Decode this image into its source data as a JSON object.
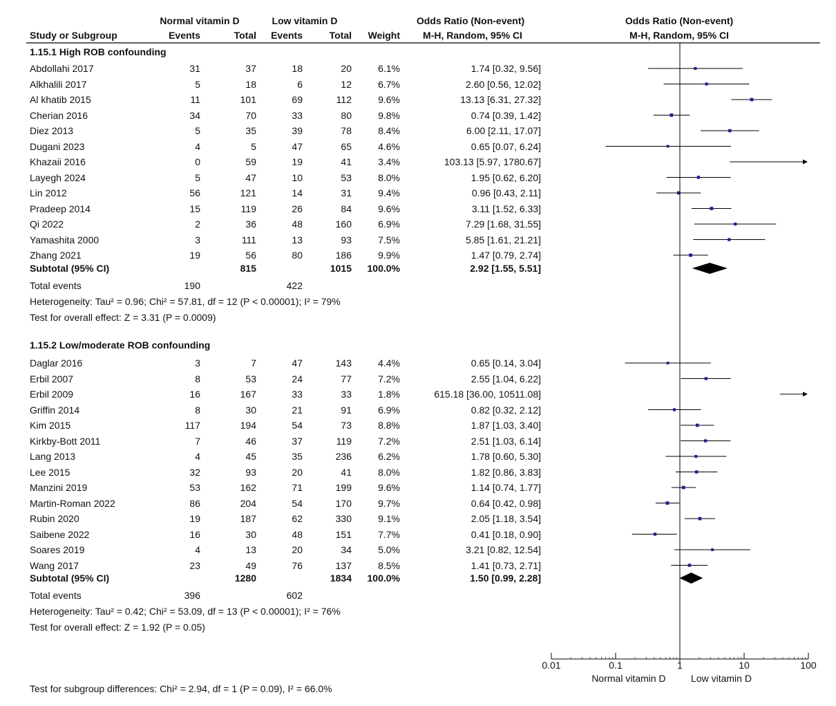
{
  "headers": {
    "group_normal": "Normal vitamin D",
    "group_low": "Low vitamin D",
    "or_label": "Odds Ratio (Non-event)",
    "method": "M-H, Random, 95% CI",
    "study": "Study or Subgroup",
    "events": "Events",
    "total": "Total",
    "weight": "Weight"
  },
  "subgroups": [
    {
      "title": "1.15.1 High ROB confounding",
      "studies": [
        {
          "name": "Abdollahi 2017",
          "e1": "31",
          "t1": "37",
          "e2": "18",
          "t2": "20",
          "weight": "6.1%",
          "ci": "1.74 [0.32, 9.56]",
          "or": 1.74,
          "lo": 0.32,
          "hi": 9.56,
          "w": 6.1
        },
        {
          "name": "Alkhalili 2017",
          "e1": "5",
          "t1": "18",
          "e2": "6",
          "t2": "12",
          "weight": "6.7%",
          "ci": "2.60 [0.56, 12.02]",
          "or": 2.6,
          "lo": 0.56,
          "hi": 12.02,
          "w": 6.7
        },
        {
          "name": "Al khatib 2015",
          "e1": "11",
          "t1": "101",
          "e2": "69",
          "t2": "112",
          "weight": "9.6%",
          "ci": "13.13 [6.31, 27.32]",
          "or": 13.13,
          "lo": 6.31,
          "hi": 27.32,
          "w": 9.6
        },
        {
          "name": "Cherian 2016",
          "e1": "34",
          "t1": "70",
          "e2": "33",
          "t2": "80",
          "weight": "9.8%",
          "ci": "0.74 [0.39, 1.42]",
          "or": 0.74,
          "lo": 0.39,
          "hi": 1.42,
          "w": 9.8
        },
        {
          "name": "Diez 2013",
          "e1": "5",
          "t1": "35",
          "e2": "39",
          "t2": "78",
          "weight": "8.4%",
          "ci": "6.00 [2.11, 17.07]",
          "or": 6.0,
          "lo": 2.11,
          "hi": 17.07,
          "w": 8.4
        },
        {
          "name": "Dugani 2023",
          "e1": "4",
          "t1": "5",
          "e2": "47",
          "t2": "65",
          "weight": "4.6%",
          "ci": "0.65 [0.07, 6.24]",
          "or": 0.65,
          "lo": 0.07,
          "hi": 6.24,
          "w": 4.6
        },
        {
          "name": "Khazaii 2016",
          "e1": "0",
          "t1": "59",
          "e2": "19",
          "t2": "41",
          "weight": "3.4%",
          "ci": "103.13 [5.97, 1780.67]",
          "or": 103.13,
          "lo": 5.97,
          "hi": 1780.67,
          "w": 3.4
        },
        {
          "name": "Layegh 2024",
          "e1": "5",
          "t1": "47",
          "e2": "10",
          "t2": "53",
          "weight": "8.0%",
          "ci": "1.95 [0.62, 6.20]",
          "or": 1.95,
          "lo": 0.62,
          "hi": 6.2,
          "w": 8.0
        },
        {
          "name": "Lin 2012",
          "e1": "56",
          "t1": "121",
          "e2": "14",
          "t2": "31",
          "weight": "9.4%",
          "ci": "0.96 [0.43, 2.11]",
          "or": 0.96,
          "lo": 0.43,
          "hi": 2.11,
          "w": 9.4
        },
        {
          "name": "Pradeep 2014",
          "e1": "15",
          "t1": "119",
          "e2": "26",
          "t2": "84",
          "weight": "9.6%",
          "ci": "3.11 [1.52, 6.33]",
          "or": 3.11,
          "lo": 1.52,
          "hi": 6.33,
          "w": 9.6
        },
        {
          "name": "Qi 2022",
          "e1": "2",
          "t1": "36",
          "e2": "48",
          "t2": "160",
          "weight": "6.9%",
          "ci": "7.29 [1.68, 31.55]",
          "or": 7.29,
          "lo": 1.68,
          "hi": 31.55,
          "w": 6.9
        },
        {
          "name": "Yamashita 2000",
          "e1": "3",
          "t1": "111",
          "e2": "13",
          "t2": "93",
          "weight": "7.5%",
          "ci": "5.85 [1.61, 21.21]",
          "or": 5.85,
          "lo": 1.61,
          "hi": 21.21,
          "w": 7.5
        },
        {
          "name": "Zhang 2021",
          "e1": "19",
          "t1": "56",
          "e2": "80",
          "t2": "186",
          "weight": "9.9%",
          "ci": "1.47 [0.79, 2.74]",
          "or": 1.47,
          "lo": 0.79,
          "hi": 2.74,
          "w": 9.9
        }
      ],
      "subtotal": {
        "label": "Subtotal (95% CI)",
        "t1": "815",
        "t2": "1015",
        "weight": "100.0%",
        "ci": "2.92 [1.55, 5.51]",
        "or": 2.92,
        "lo": 1.55,
        "hi": 5.51
      },
      "total_events": {
        "label": "Total events",
        "e1": "190",
        "e2": "422"
      },
      "heterogeneity": "Heterogeneity: Tau² = 0.96; Chi² = 57.81, df = 12 (P < 0.00001); I² = 79%",
      "overall": "Test for overall effect: Z = 3.31 (P = 0.0009)"
    },
    {
      "title": "1.15.2 Low/moderate ROB confounding",
      "studies": [
        {
          "name": "Daglar 2016",
          "e1": "3",
          "t1": "7",
          "e2": "47",
          "t2": "143",
          "weight": "4.4%",
          "ci": "0.65 [0.14, 3.04]",
          "or": 0.65,
          "lo": 0.14,
          "hi": 3.04,
          "w": 4.4
        },
        {
          "name": "Erbil 2007",
          "e1": "8",
          "t1": "53",
          "e2": "24",
          "t2": "77",
          "weight": "7.2%",
          "ci": "2.55 [1.04, 6.22]",
          "or": 2.55,
          "lo": 1.04,
          "hi": 6.22,
          "w": 7.2
        },
        {
          "name": "Erbil 2009",
          "e1": "16",
          "t1": "167",
          "e2": "33",
          "t2": "33",
          "weight": "1.8%",
          "ci": "615.18 [36.00, 10511.08]",
          "or": 615.18,
          "lo": 36.0,
          "hi": 10511.08,
          "w": 1.8
        },
        {
          "name": "Griffin 2014",
          "e1": "8",
          "t1": "30",
          "e2": "21",
          "t2": "91",
          "weight": "6.9%",
          "ci": "0.82 [0.32, 2.12]",
          "or": 0.82,
          "lo": 0.32,
          "hi": 2.12,
          "w": 6.9
        },
        {
          "name": "Kim 2015",
          "e1": "117",
          "t1": "194",
          "e2": "54",
          "t2": "73",
          "weight": "8.8%",
          "ci": "1.87 [1.03, 3.40]",
          "or": 1.87,
          "lo": 1.03,
          "hi": 3.4,
          "w": 8.8
        },
        {
          "name": "Kirkby-Bott 2011",
          "e1": "7",
          "t1": "46",
          "e2": "37",
          "t2": "119",
          "weight": "7.2%",
          "ci": "2.51 [1.03, 6.14]",
          "or": 2.51,
          "lo": 1.03,
          "hi": 6.14,
          "w": 7.2
        },
        {
          "name": "Lang 2013",
          "e1": "4",
          "t1": "45",
          "e2": "35",
          "t2": "236",
          "weight": "6.2%",
          "ci": "1.78 [0.60, 5.30]",
          "or": 1.78,
          "lo": 0.6,
          "hi": 5.3,
          "w": 6.2
        },
        {
          "name": "Lee 2015",
          "e1": "32",
          "t1": "93",
          "e2": "20",
          "t2": "41",
          "weight": "8.0%",
          "ci": "1.82 [0.86, 3.83]",
          "or": 1.82,
          "lo": 0.86,
          "hi": 3.83,
          "w": 8.0
        },
        {
          "name": "Manzini 2019",
          "e1": "53",
          "t1": "162",
          "e2": "71",
          "t2": "199",
          "weight": "9.6%",
          "ci": "1.14 [0.74, 1.77]",
          "or": 1.14,
          "lo": 0.74,
          "hi": 1.77,
          "w": 9.6
        },
        {
          "name": "Martin-Roman 2022",
          "e1": "86",
          "t1": "204",
          "e2": "54",
          "t2": "170",
          "weight": "9.7%",
          "ci": "0.64 [0.42, 0.98]",
          "or": 0.64,
          "lo": 0.42,
          "hi": 0.98,
          "w": 9.7
        },
        {
          "name": "Rubin 2020",
          "e1": "19",
          "t1": "187",
          "e2": "62",
          "t2": "330",
          "weight": "9.1%",
          "ci": "2.05 [1.18, 3.54]",
          "or": 2.05,
          "lo": 1.18,
          "hi": 3.54,
          "w": 9.1
        },
        {
          "name": "Saibene 2022",
          "e1": "16",
          "t1": "30",
          "e2": "48",
          "t2": "151",
          "weight": "7.7%",
          "ci": "0.41 [0.18, 0.90]",
          "or": 0.41,
          "lo": 0.18,
          "hi": 0.9,
          "w": 7.7
        },
        {
          "name": "Soares 2019",
          "e1": "4",
          "t1": "13",
          "e2": "20",
          "t2": "34",
          "weight": "5.0%",
          "ci": "3.21 [0.82, 12.54]",
          "or": 3.21,
          "lo": 0.82,
          "hi": 12.54,
          "w": 5.0
        },
        {
          "name": "Wang 2017",
          "e1": "23",
          "t1": "49",
          "e2": "76",
          "t2": "137",
          "weight": "8.5%",
          "ci": "1.41 [0.73, 2.71]",
          "or": 1.41,
          "lo": 0.73,
          "hi": 2.71,
          "w": 8.5
        }
      ],
      "subtotal": {
        "label": "Subtotal (95% CI)",
        "t1": "1280",
        "t2": "1834",
        "weight": "100.0%",
        "ci": "1.50 [0.99, 2.28]",
        "or": 1.5,
        "lo": 0.99,
        "hi": 2.28
      },
      "total_events": {
        "label": "Total events",
        "e1": "396",
        "e2": "602"
      },
      "heterogeneity": "Heterogeneity: Tau² = 0.42; Chi² = 53.09, df = 13 (P < 0.00001); I² = 76%",
      "overall": "Test for overall effect: Z = 1.92 (P = 0.05)"
    }
  ],
  "subgroup_test": "Test for subgroup differences: Chi² = 2.94, df = 1 (P = 0.09), I² = 66.0%",
  "chart_data": {
    "type": "forest",
    "scale": "log",
    "xlim": [
      0.01,
      100
    ],
    "ticks": [
      "0.01",
      "0.1",
      "1",
      "10",
      "100"
    ],
    "tick_values": [
      0.01,
      0.1,
      1,
      10,
      100
    ],
    "favours_left": "Normal vitamin D",
    "favours_right": "Low vitamin D",
    "null_value": 1,
    "colors": {
      "marker": "#1f1f8f",
      "line": "#000000",
      "diamond": "#000000"
    }
  }
}
